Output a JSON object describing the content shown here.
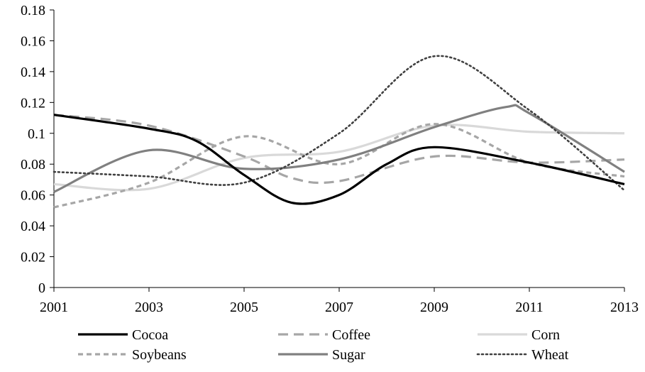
{
  "chart_data": {
    "type": "line",
    "title": "",
    "xlabel": "",
    "ylabel": "",
    "x": [
      2001,
      2003,
      2005,
      2007,
      2009,
      2011,
      2013
    ],
    "x_tick_labels": [
      "2001",
      "2003",
      "2005",
      "2007",
      "2009",
      "2011",
      "2013"
    ],
    "ylim": [
      0,
      0.18
    ],
    "y_ticks": [
      0,
      0.02,
      0.04,
      0.06,
      0.08,
      0.1,
      0.12,
      0.14,
      0.16,
      0.18
    ],
    "y_tick_labels": [
      "0",
      "0.02",
      "0.04",
      "0.06",
      "0.08",
      "0.1",
      "0.12",
      "0.14",
      "0.16",
      "0.18"
    ],
    "grid": false,
    "legend_position": "bottom",
    "smooth": true,
    "series": [
      {
        "name": "Cocoa",
        "color": "#000000",
        "style": "solid",
        "points": [
          [
            2001,
            0.112
          ],
          [
            2003,
            0.103
          ],
          [
            2004,
            0.095
          ],
          [
            2005,
            0.073
          ],
          [
            2006,
            0.055
          ],
          [
            2007,
            0.06
          ],
          [
            2008,
            0.08
          ],
          [
            2009,
            0.091
          ],
          [
            2011,
            0.081
          ],
          [
            2013,
            0.067
          ]
        ]
      },
      {
        "name": "Coffee",
        "color": "#a6a6a6",
        "style": "long-dash",
        "points": [
          [
            2001,
            0.112
          ],
          [
            2003,
            0.105
          ],
          [
            2005,
            0.085
          ],
          [
            2006,
            0.071
          ],
          [
            2007,
            0.069
          ],
          [
            2009,
            0.085
          ],
          [
            2011,
            0.081
          ],
          [
            2013,
            0.083
          ]
        ]
      },
      {
        "name": "Corn",
        "color": "#d9d9d9",
        "style": "solid",
        "points": [
          [
            2001,
            0.067
          ],
          [
            2003,
            0.064
          ],
          [
            2005,
            0.084
          ],
          [
            2007,
            0.088
          ],
          [
            2009,
            0.105
          ],
          [
            2011,
            0.101
          ],
          [
            2013,
            0.1
          ]
        ]
      },
      {
        "name": "Soybeans",
        "color": "#a6a6a6",
        "style": "short-dash",
        "points": [
          [
            2001,
            0.052
          ],
          [
            2003,
            0.068
          ],
          [
            2005,
            0.098
          ],
          [
            2007,
            0.08
          ],
          [
            2009,
            0.106
          ],
          [
            2011,
            0.081
          ],
          [
            2013,
            0.072
          ]
        ]
      },
      {
        "name": "Sugar",
        "color": "#808080",
        "style": "solid",
        "points": [
          [
            2001,
            0.062
          ],
          [
            2003,
            0.089
          ],
          [
            2005,
            0.077
          ],
          [
            2007,
            0.083
          ],
          [
            2009,
            0.104
          ],
          [
            2010.5,
            0.117
          ],
          [
            2011,
            0.113
          ],
          [
            2013,
            0.075
          ]
        ]
      },
      {
        "name": "Wheat",
        "color": "#404040",
        "style": "dotted",
        "points": [
          [
            2001,
            0.075
          ],
          [
            2003,
            0.072
          ],
          [
            2005,
            0.068
          ],
          [
            2007,
            0.1
          ],
          [
            2009,
            0.15
          ],
          [
            2011,
            0.115
          ],
          [
            2013,
            0.063
          ]
        ]
      }
    ]
  }
}
